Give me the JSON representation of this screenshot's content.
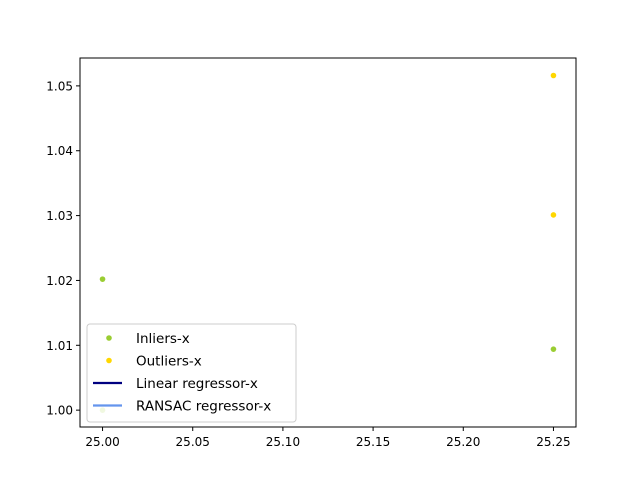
{
  "chart_data": {
    "type": "scatter",
    "title": "",
    "xlabel": "",
    "ylabel": "",
    "xlim": [
      24.9875,
      25.2625
    ],
    "ylim": [
      0.9974,
      1.0543
    ],
    "x_ticks": [
      25.0,
      25.05,
      25.1,
      25.15,
      25.2,
      25.25
    ],
    "x_tick_labels": [
      "25.00",
      "25.05",
      "25.10",
      "25.15",
      "25.20",
      "25.25"
    ],
    "y_ticks": [
      1.0,
      1.01,
      1.02,
      1.03,
      1.04,
      1.05
    ],
    "y_tick_labels": [
      "1.00",
      "1.01",
      "1.02",
      "1.03",
      "1.04",
      "1.05"
    ],
    "grid": false,
    "legend_placement": "lower-left",
    "series": [
      {
        "name": "Inliers-x",
        "kind": "scatter",
        "color": "#9acd32",
        "points": [
          [
            25.0,
            1.0202
          ],
          [
            25.0,
            1.0
          ],
          [
            25.25,
            1.0094
          ]
        ]
      },
      {
        "name": "Outliers-x",
        "kind": "scatter",
        "color": "#ffd700",
        "points": [
          [
            25.25,
            1.0516
          ],
          [
            25.25,
            1.0301
          ]
        ]
      },
      {
        "name": "Linear regressor-x",
        "kind": "line",
        "color": "#000080",
        "points": []
      },
      {
        "name": "RANSAC regressor-x",
        "kind": "line",
        "color": "#6495ed",
        "points": []
      }
    ]
  }
}
